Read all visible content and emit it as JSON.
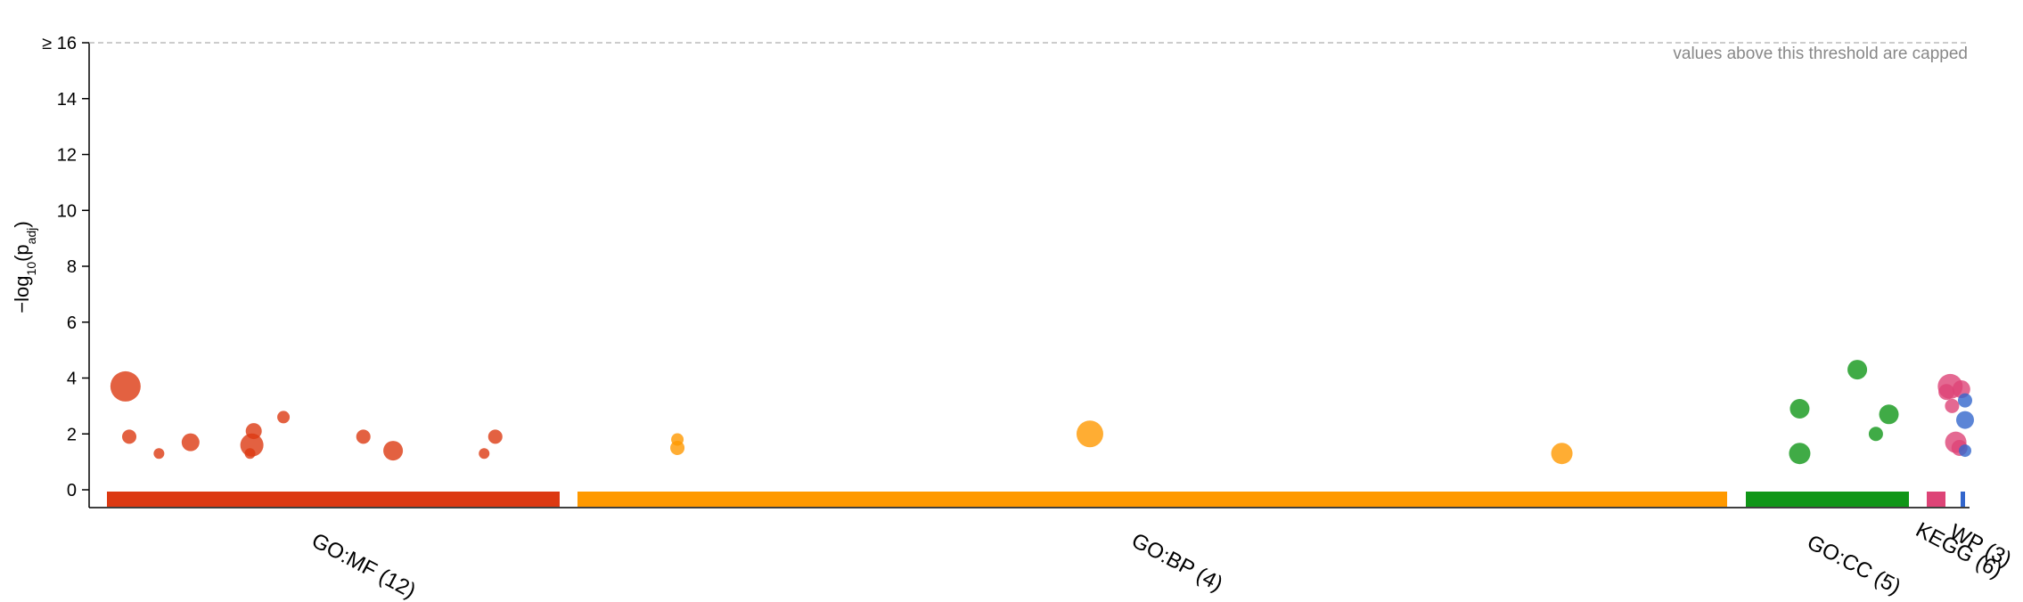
{
  "chart_data": {
    "type": "scatter",
    "ylabel_base": "−log",
    "ylabel_sub": "10",
    "ylabel_mid": "(p",
    "ylabel_sub2": "adj",
    "ylabel_end": ")",
    "ylim": [
      0,
      16
    ],
    "y_ticks": [
      {
        "value": 0,
        "label": "0"
      },
      {
        "value": 2,
        "label": "2"
      },
      {
        "value": 4,
        "label": "4"
      },
      {
        "value": 6,
        "label": "6"
      },
      {
        "value": 8,
        "label": "8"
      },
      {
        "value": 10,
        "label": "10"
      },
      {
        "value": 12,
        "label": "12"
      },
      {
        "value": 14,
        "label": "14"
      },
      {
        "value": 16,
        "label": "≥ 16"
      }
    ],
    "cap_note": "values above this threshold are capped",
    "grid": false,
    "sources": [
      {
        "name": "GO:MF (12)",
        "color": "#dc3912",
        "range": [
          0.0,
          0.25
        ],
        "points": [
          {
            "pos": 0.01,
            "y": 3.7,
            "size": 17
          },
          {
            "pos": 0.012,
            "y": 1.9,
            "size": 8
          },
          {
            "pos": 0.028,
            "y": 1.3,
            "size": 6
          },
          {
            "pos": 0.045,
            "y": 1.7,
            "size": 10
          },
          {
            "pos": 0.079,
            "y": 2.1,
            "size": 9
          },
          {
            "pos": 0.078,
            "y": 1.6,
            "size": 13
          },
          {
            "pos": 0.077,
            "y": 1.3,
            "size": 6
          },
          {
            "pos": 0.095,
            "y": 2.6,
            "size": 7
          },
          {
            "pos": 0.138,
            "y": 1.9,
            "size": 8
          },
          {
            "pos": 0.154,
            "y": 1.4,
            "size": 11
          },
          {
            "pos": 0.203,
            "y": 1.3,
            "size": 6
          },
          {
            "pos": 0.209,
            "y": 1.9,
            "size": 8
          }
        ]
      },
      {
        "name": "GO:BP (4)",
        "color": "#ff9900",
        "range": [
          0.26,
          0.9
        ],
        "points": [
          {
            "pos": 0.307,
            "y": 1.8,
            "size": 7
          },
          {
            "pos": 0.307,
            "y": 1.5,
            "size": 8
          },
          {
            "pos": 0.529,
            "y": 2.0,
            "size": 15
          },
          {
            "pos": 0.783,
            "y": 1.3,
            "size": 12
          }
        ]
      },
      {
        "name": "GO:CC (5)",
        "color": "#109618",
        "range": [
          0.91,
          1.0
        ],
        "points": [
          {
            "pos": 0.911,
            "y": 2.9,
            "size": 11
          },
          {
            "pos": 0.911,
            "y": 1.3,
            "size": 12
          },
          {
            "pos": 0.942,
            "y": 4.3,
            "size": 11
          },
          {
            "pos": 0.952,
            "y": 2.0,
            "size": 8
          },
          {
            "pos": 0.959,
            "y": 2.7,
            "size": 11
          }
        ]
      },
      {
        "name": "KEGG (6)",
        "color": "#dd4477",
        "range": [
          0.0,
          1.0
        ],
        "points": [
          {
            "pos": 0.992,
            "y": 3.7,
            "size": 14
          },
          {
            "pos": 0.99,
            "y": 3.5,
            "size": 9
          },
          {
            "pos": 0.993,
            "y": 3.0,
            "size": 8
          },
          {
            "pos": 0.995,
            "y": 1.7,
            "size": 12
          },
          {
            "pos": 0.997,
            "y": 1.5,
            "size": 9
          },
          {
            "pos": 0.998,
            "y": 3.6,
            "size": 10
          }
        ]
      },
      {
        "name": "WP (3)",
        "color": "#3366cc",
        "range": [
          0.0,
          1.0
        ],
        "points": [
          {
            "pos": 1.0,
            "y": 3.2,
            "size": 8
          },
          {
            "pos": 1.0,
            "y": 2.5,
            "size": 10
          },
          {
            "pos": 1.0,
            "y": 1.4,
            "size": 7
          }
        ]
      }
    ]
  }
}
